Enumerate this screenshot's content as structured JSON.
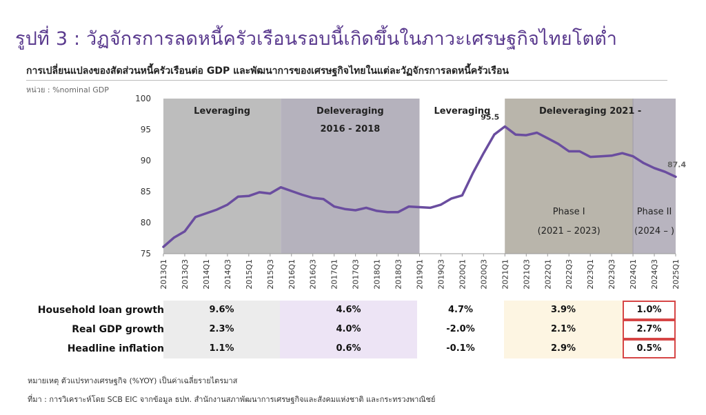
{
  "title": "รูปที่ 3 : วัฏจักรการลดหนี้ครัวเรือนรอบนี้เกิดขึ้นในภาวะเศรษฐกิจไทยโตต่ำ",
  "subtitle": "การเปลี่ยนแปลงของสัดส่วนหนี้ครัวเรือนต่อ GDP และพัฒนาการของเศรษฐกิจไทยในแต่ละวัฏจักรการลดหนี้ครัวเรือน",
  "unit": "หน่วย : %nominal GDP",
  "chart_data": {
    "type": "line",
    "ylim": [
      75,
      100
    ],
    "yticks": [
      "100",
      "95",
      "90",
      "85",
      "80",
      "75"
    ],
    "ytick_values": [
      100,
      95,
      90,
      85,
      80,
      75
    ],
    "x": [
      "2013Q1",
      "2013Q2",
      "2013Q3",
      "2013Q4",
      "2014Q1",
      "2014Q2",
      "2014Q3",
      "2014Q4",
      "2015Q1",
      "2015Q2",
      "2015Q3",
      "2015Q4",
      "2016Q1",
      "2016Q2",
      "2016Q3",
      "2016Q4",
      "2017Q1",
      "2017Q2",
      "2017Q3",
      "2017Q4",
      "2018Q1",
      "2018Q2",
      "2018Q3",
      "2018Q4",
      "2019Q1",
      "2019Q2",
      "2019Q3",
      "2019Q4",
      "2020Q1",
      "2020Q2",
      "2020Q3",
      "2020Q4",
      "2021Q1",
      "2021Q2",
      "2021Q3",
      "2021Q4",
      "2022Q1",
      "2022Q2",
      "2022Q3",
      "2022Q4",
      "2023Q1",
      "2023Q2",
      "2023Q3",
      "2023Q4",
      "2024Q1",
      "2024Q2",
      "2024Q3",
      "2024Q4",
      "2025Q1"
    ],
    "xtick_labels": [
      "2013Q1",
      "2013Q3",
      "2014Q1",
      "2014Q3",
      "2015Q1",
      "2015Q3",
      "2016Q1",
      "2016Q3",
      "2017Q1",
      "2017Q3",
      "2018Q1",
      "2018Q3",
      "2019Q1",
      "2019Q3",
      "2020Q1",
      "2020Q3",
      "2021Q1",
      "2021Q3",
      "2022Q1",
      "2022Q3",
      "2023Q1",
      "2023Q3",
      "2024Q1",
      "2024Q3",
      "2025Q1"
    ],
    "series": [
      {
        "values": [
          76.1,
          77.6,
          78.6,
          80.9,
          81.5,
          82.1,
          82.9,
          84.2,
          84.3,
          84.9,
          84.7,
          85.7,
          85.1,
          84.5,
          84.0,
          83.8,
          82.6,
          82.2,
          82.0,
          82.4,
          81.9,
          81.7,
          81.7,
          82.6,
          82.5,
          82.4,
          82.9,
          83.9,
          84.4,
          88.0,
          91.2,
          94.2,
          95.5,
          94.2,
          94.1,
          94.5,
          93.6,
          92.7,
          91.5,
          91.5,
          90.6,
          90.7,
          90.8,
          91.2,
          90.7,
          89.6,
          88.8,
          88.2,
          87.4
        ],
        "color": "#6a4d9f"
      }
    ],
    "annotations": [
      {
        "label": "95.5",
        "x": "2021Q1",
        "value": 95.5
      },
      {
        "label": "87.4",
        "x": "2025Q1",
        "value": 87.4
      }
    ],
    "periods": [
      {
        "label": "Leveraging",
        "label2": "",
        "from": "2013Q1",
        "to": "2015Q4",
        "color": "#bdbdbd"
      },
      {
        "label": "Deleveraging",
        "label2": "2016 - 2018",
        "from": "2015Q4",
        "to": "2019Q1",
        "color": "#b5b2bd"
      },
      {
        "label": "Leveraging",
        "label2": "",
        "from": "2019Q1",
        "to": "2021Q1",
        "color": "#ffffff"
      },
      {
        "label": "Deleveraging 2021 -",
        "label2": "",
        "from": "2021Q1",
        "to": "2025Q1",
        "color": "#b9b5ab"
      }
    ],
    "phases": [
      {
        "label": "Phase I",
        "label2": "(2021 – 2023)",
        "from": "2021Q1",
        "to": "2024Q1",
        "color": "#b9b5ab"
      },
      {
        "label": "Phase II",
        "label2": "(2024 – )",
        "from": "2024Q1",
        "to": "2025Q1",
        "color": "#b8b4bf"
      }
    ]
  },
  "table": {
    "rows": [
      {
        "label": "Household loan growth",
        "values": [
          "9.6%",
          "4.6%",
          "4.7%",
          "3.9%",
          "1.0%"
        ]
      },
      {
        "label": "Real GDP growth",
        "values": [
          "2.3%",
          "4.0%",
          "-2.0%",
          "2.1%",
          "2.7%"
        ]
      },
      {
        "label": "Headline inflation",
        "values": [
          "1.1%",
          "0.6%",
          "-0.1%",
          "2.9%",
          "0.5%"
        ]
      }
    ],
    "column_colors": [
      "#ececec",
      "#ede4f5",
      "#ffffff",
      "#fdf5e2",
      "#ffffff"
    ],
    "highlight_color": "#d64545"
  },
  "note": "หมายเหตุ ตัวแปรทางเศรษฐกิจ (%YOY) เป็นค่าเฉลี่ยรายไตรมาส",
  "source": "ที่มา : การวิเคราะห์โดย SCB EIC จากข้อมูล ธปท. สำนักงานสภาพัฒนาการเศรษฐกิจและสังคมแห่งชาติ และกระทรวงพาณิชย์"
}
